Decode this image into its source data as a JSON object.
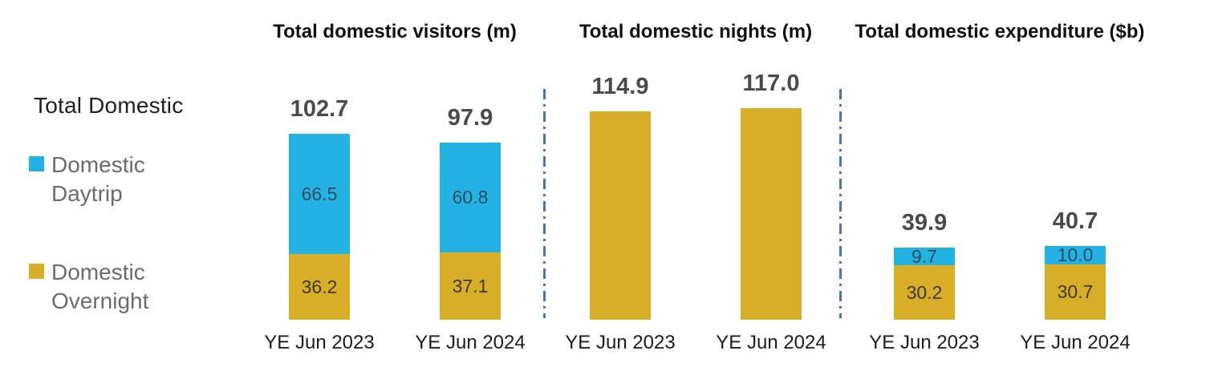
{
  "left_label": "Total Domestic",
  "legend": {
    "items": [
      {
        "label": "Domestic Daytrip",
        "color": "#22B2E4"
      },
      {
        "label": "Domestic Overnight",
        "color": "#D9AE27"
      }
    ]
  },
  "divider_color": "#4472C4",
  "accent_colors": {
    "daytrip_blue": "#22B2E4",
    "overnight_gold": "#D9AE27",
    "total_label_gray": "#4a4a4a"
  },
  "chart_data": [
    {
      "type": "bar",
      "stacked": true,
      "title": "Total domestic visitors (m)",
      "categories": [
        "YE Jun 2023",
        "YE Jun 2024"
      ],
      "series": [
        {
          "name": "Domestic Daytrip",
          "color": "#22B2E4",
          "label_color": "#2b4e5f",
          "values": [
            66.5,
            60.8
          ]
        },
        {
          "name": "Domestic Overnight",
          "color": "#D9AE27",
          "label_color": "#3e3524",
          "values": [
            36.2,
            37.1
          ]
        }
      ],
      "totals": [
        102.7,
        97.9
      ],
      "show_segment_labels": true,
      "legend_position": "left",
      "grid": false
    },
    {
      "type": "bar",
      "stacked": false,
      "title": "Total domestic nights (m)",
      "categories": [
        "YE Jun 2023",
        "YE Jun 2024"
      ],
      "series": [
        {
          "name": "Total domestic nights",
          "color": "#D9AE27",
          "label_color": "#3e3524",
          "values": [
            114.9,
            117.0
          ]
        }
      ],
      "totals": [
        114.9,
        117.0
      ],
      "show_segment_labels": false,
      "grid": false
    },
    {
      "type": "bar",
      "stacked": true,
      "title": "Total domestic expenditure ($b)",
      "categories": [
        "YE Jun 2023",
        "YE Jun 2024"
      ],
      "series": [
        {
          "name": "Domestic Daytrip",
          "color": "#22B2E4",
          "label_color": "#2b4e5f",
          "values": [
            9.7,
            10.0
          ]
        },
        {
          "name": "Domestic Overnight",
          "color": "#D9AE27",
          "label_color": "#3e3524",
          "values": [
            30.2,
            30.7
          ]
        }
      ],
      "totals": [
        39.9,
        40.7
      ],
      "show_segment_labels": true,
      "grid": false
    }
  ]
}
